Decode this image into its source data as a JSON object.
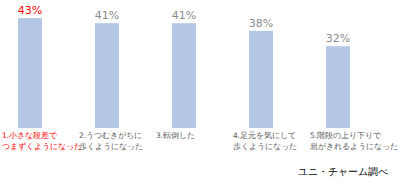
{
  "chart_data": {
    "type": "bar",
    "categories": [
      "1.小さな段差で\nつまずくようになった",
      "2.うつむきがちに\n歩くようになった",
      "3.転倒した",
      "4.足元を気にして\n歩くようになった",
      "5.階段の上り下りで\n息がきれるようになった"
    ],
    "values": [
      43,
      41,
      41,
      38,
      32
    ],
    "value_labels": [
      "43%",
      "41%",
      "41%",
      "38%",
      "32%"
    ],
    "color": "#b4c7e7",
    "ylim": [
      0,
      45
    ],
    "data_labels": true,
    "tick_labels": "x",
    "grid": false,
    "source": "ユニ・チャーム調べ"
  }
}
